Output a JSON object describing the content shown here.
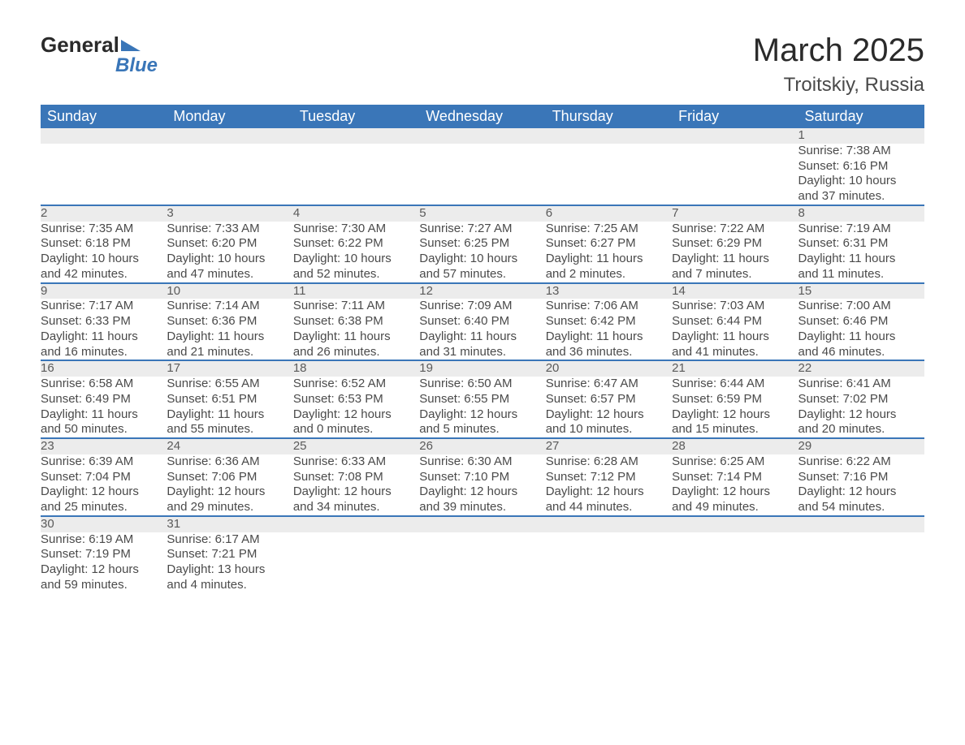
{
  "logo": {
    "word1": "General",
    "word2": "Blue"
  },
  "title": "March 2025",
  "location": "Troitskiy, Russia",
  "colors": {
    "header_bg": "#3a76b8",
    "header_text": "#ffffff",
    "daynum_bg": "#ececec",
    "row_divider": "#3a76b8",
    "body_text": "#4a4a4a",
    "page_bg": "#ffffff"
  },
  "fontsizes": {
    "title": 40,
    "subtitle": 24,
    "weekday_header": 18,
    "daynum": 18,
    "cell_text": 15
  },
  "weekdays": [
    "Sunday",
    "Monday",
    "Tuesday",
    "Wednesday",
    "Thursday",
    "Friday",
    "Saturday"
  ],
  "weeks": [
    [
      null,
      null,
      null,
      null,
      null,
      null,
      {
        "n": "1",
        "sr": "Sunrise: 7:38 AM",
        "ss": "Sunset: 6:16 PM",
        "d1": "Daylight: 10 hours",
        "d2": "and 37 minutes."
      }
    ],
    [
      {
        "n": "2",
        "sr": "Sunrise: 7:35 AM",
        "ss": "Sunset: 6:18 PM",
        "d1": "Daylight: 10 hours",
        "d2": "and 42 minutes."
      },
      {
        "n": "3",
        "sr": "Sunrise: 7:33 AM",
        "ss": "Sunset: 6:20 PM",
        "d1": "Daylight: 10 hours",
        "d2": "and 47 minutes."
      },
      {
        "n": "4",
        "sr": "Sunrise: 7:30 AM",
        "ss": "Sunset: 6:22 PM",
        "d1": "Daylight: 10 hours",
        "d2": "and 52 minutes."
      },
      {
        "n": "5",
        "sr": "Sunrise: 7:27 AM",
        "ss": "Sunset: 6:25 PM",
        "d1": "Daylight: 10 hours",
        "d2": "and 57 minutes."
      },
      {
        "n": "6",
        "sr": "Sunrise: 7:25 AM",
        "ss": "Sunset: 6:27 PM",
        "d1": "Daylight: 11 hours",
        "d2": "and 2 minutes."
      },
      {
        "n": "7",
        "sr": "Sunrise: 7:22 AM",
        "ss": "Sunset: 6:29 PM",
        "d1": "Daylight: 11 hours",
        "d2": "and 7 minutes."
      },
      {
        "n": "8",
        "sr": "Sunrise: 7:19 AM",
        "ss": "Sunset: 6:31 PM",
        "d1": "Daylight: 11 hours",
        "d2": "and 11 minutes."
      }
    ],
    [
      {
        "n": "9",
        "sr": "Sunrise: 7:17 AM",
        "ss": "Sunset: 6:33 PM",
        "d1": "Daylight: 11 hours",
        "d2": "and 16 minutes."
      },
      {
        "n": "10",
        "sr": "Sunrise: 7:14 AM",
        "ss": "Sunset: 6:36 PM",
        "d1": "Daylight: 11 hours",
        "d2": "and 21 minutes."
      },
      {
        "n": "11",
        "sr": "Sunrise: 7:11 AM",
        "ss": "Sunset: 6:38 PM",
        "d1": "Daylight: 11 hours",
        "d2": "and 26 minutes."
      },
      {
        "n": "12",
        "sr": "Sunrise: 7:09 AM",
        "ss": "Sunset: 6:40 PM",
        "d1": "Daylight: 11 hours",
        "d2": "and 31 minutes."
      },
      {
        "n": "13",
        "sr": "Sunrise: 7:06 AM",
        "ss": "Sunset: 6:42 PM",
        "d1": "Daylight: 11 hours",
        "d2": "and 36 minutes."
      },
      {
        "n": "14",
        "sr": "Sunrise: 7:03 AM",
        "ss": "Sunset: 6:44 PM",
        "d1": "Daylight: 11 hours",
        "d2": "and 41 minutes."
      },
      {
        "n": "15",
        "sr": "Sunrise: 7:00 AM",
        "ss": "Sunset: 6:46 PM",
        "d1": "Daylight: 11 hours",
        "d2": "and 46 minutes."
      }
    ],
    [
      {
        "n": "16",
        "sr": "Sunrise: 6:58 AM",
        "ss": "Sunset: 6:49 PM",
        "d1": "Daylight: 11 hours",
        "d2": "and 50 minutes."
      },
      {
        "n": "17",
        "sr": "Sunrise: 6:55 AM",
        "ss": "Sunset: 6:51 PM",
        "d1": "Daylight: 11 hours",
        "d2": "and 55 minutes."
      },
      {
        "n": "18",
        "sr": "Sunrise: 6:52 AM",
        "ss": "Sunset: 6:53 PM",
        "d1": "Daylight: 12 hours",
        "d2": "and 0 minutes."
      },
      {
        "n": "19",
        "sr": "Sunrise: 6:50 AM",
        "ss": "Sunset: 6:55 PM",
        "d1": "Daylight: 12 hours",
        "d2": "and 5 minutes."
      },
      {
        "n": "20",
        "sr": "Sunrise: 6:47 AM",
        "ss": "Sunset: 6:57 PM",
        "d1": "Daylight: 12 hours",
        "d2": "and 10 minutes."
      },
      {
        "n": "21",
        "sr": "Sunrise: 6:44 AM",
        "ss": "Sunset: 6:59 PM",
        "d1": "Daylight: 12 hours",
        "d2": "and 15 minutes."
      },
      {
        "n": "22",
        "sr": "Sunrise: 6:41 AM",
        "ss": "Sunset: 7:02 PM",
        "d1": "Daylight: 12 hours",
        "d2": "and 20 minutes."
      }
    ],
    [
      {
        "n": "23",
        "sr": "Sunrise: 6:39 AM",
        "ss": "Sunset: 7:04 PM",
        "d1": "Daylight: 12 hours",
        "d2": "and 25 minutes."
      },
      {
        "n": "24",
        "sr": "Sunrise: 6:36 AM",
        "ss": "Sunset: 7:06 PM",
        "d1": "Daylight: 12 hours",
        "d2": "and 29 minutes."
      },
      {
        "n": "25",
        "sr": "Sunrise: 6:33 AM",
        "ss": "Sunset: 7:08 PM",
        "d1": "Daylight: 12 hours",
        "d2": "and 34 minutes."
      },
      {
        "n": "26",
        "sr": "Sunrise: 6:30 AM",
        "ss": "Sunset: 7:10 PM",
        "d1": "Daylight: 12 hours",
        "d2": "and 39 minutes."
      },
      {
        "n": "27",
        "sr": "Sunrise: 6:28 AM",
        "ss": "Sunset: 7:12 PM",
        "d1": "Daylight: 12 hours",
        "d2": "and 44 minutes."
      },
      {
        "n": "28",
        "sr": "Sunrise: 6:25 AM",
        "ss": "Sunset: 7:14 PM",
        "d1": "Daylight: 12 hours",
        "d2": "and 49 minutes."
      },
      {
        "n": "29",
        "sr": "Sunrise: 6:22 AM",
        "ss": "Sunset: 7:16 PM",
        "d1": "Daylight: 12 hours",
        "d2": "and 54 minutes."
      }
    ],
    [
      {
        "n": "30",
        "sr": "Sunrise: 6:19 AM",
        "ss": "Sunset: 7:19 PM",
        "d1": "Daylight: 12 hours",
        "d2": "and 59 minutes."
      },
      {
        "n": "31",
        "sr": "Sunrise: 6:17 AM",
        "ss": "Sunset: 7:21 PM",
        "d1": "Daylight: 13 hours",
        "d2": "and 4 minutes."
      },
      null,
      null,
      null,
      null,
      null
    ]
  ]
}
